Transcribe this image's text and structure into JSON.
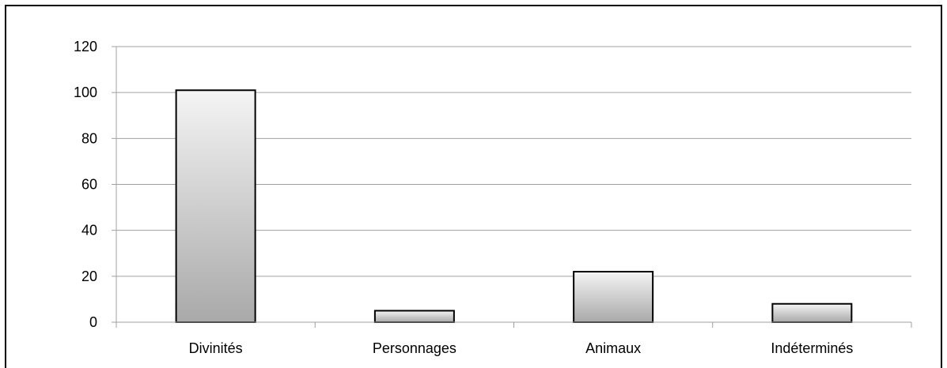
{
  "chart_data": {
    "type": "bar",
    "categories": [
      "Divinités",
      "Personnages",
      "Animaux",
      "Indéterminés"
    ],
    "values": [
      101,
      5,
      22,
      8
    ],
    "ylim": [
      0,
      120
    ],
    "yticks": [
      "0",
      "20",
      "40",
      "60",
      "80",
      "100",
      "120"
    ],
    "grid": true,
    "legend": "none",
    "colors": {
      "bar_top": "#f4f4f4",
      "bar_bottom": "#a9a9a9",
      "bar_stroke": "#000000",
      "grid": "#a0a0a0",
      "frame": "#000000"
    }
  }
}
